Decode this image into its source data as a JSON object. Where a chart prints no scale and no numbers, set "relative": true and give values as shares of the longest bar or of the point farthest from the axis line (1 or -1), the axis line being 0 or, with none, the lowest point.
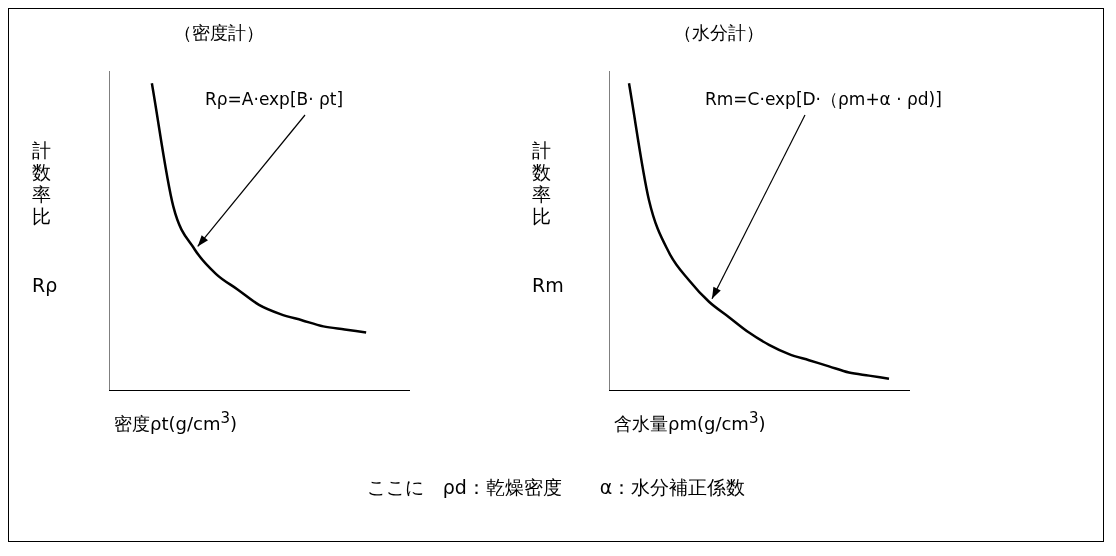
{
  "chart_data": [
    {
      "type": "line",
      "title": "（密度計）",
      "ylabel": "計数率比",
      "xlabel": "密度ρt(g/cm$^{3}$)",
      "relative": true,
      "color": "#000000",
      "grid": false,
      "legend": false,
      "marker": "none",
      "categories": [
        null,
        null,
        null,
        null,
        null,
        null,
        null,
        null,
        null,
        null,
        null,
        null,
        null,
        null,
        null
      ],
      "values": [
        null,
        null,
        1,
        0.6,
        0.46,
        0.38,
        0.33,
        0.28,
        0.25,
        0.23,
        0.21,
        0.2,
        0.19,
        null,
        null
      ],
      "annotations": [
        "Rρ=A·exp[B· ρt]",
        "Rρ"
      ]
    },
    {
      "type": "line",
      "title": "（水分計）",
      "ylabel": "計数率比",
      "xlabel": "含水量ρm(g/cm$^{3}$)",
      "relative": true,
      "color": "#000000",
      "grid": false,
      "legend": false,
      "marker": "none",
      "categories": [
        null,
        null,
        null,
        null,
        null,
        null,
        null,
        null,
        null,
        null,
        null,
        null,
        null,
        null,
        null,
        null
      ],
      "values": [
        null,
        1,
        0.62,
        0.45,
        0.36,
        0.29,
        0.24,
        0.19,
        0.15,
        0.12,
        0.1,
        0.08,
        0.06,
        0.05,
        0.04,
        null
      ],
      "annotations": [
        "Rm=C·exp[D·（ρm+α · ρd)]",
        "Rm"
      ]
    },
    {
      "type": "other",
      "annotations": [
        "ここに　ρd：乾燥密度　　α：水分補正係数"
      ]
    }
  ]
}
